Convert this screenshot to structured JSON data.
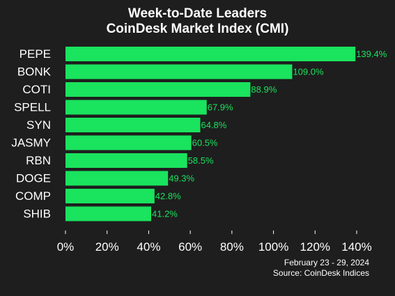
{
  "colors": {
    "background": "#1e1e1e",
    "bar": "#1ae35e",
    "text": "#ffffff",
    "value_label": "#1ae35e"
  },
  "chart_data": {
    "type": "bar",
    "orientation": "horizontal",
    "title": "Week-to-Date Leaders",
    "subtitle": "CoinDesk Market Index (CMI)",
    "categories": [
      "PEPE",
      "BONK",
      "COTI",
      "SPELL",
      "SYN",
      "JASMY",
      "RBN",
      "DOGE",
      "COMP",
      "SHIB"
    ],
    "values": [
      139.4,
      109.0,
      88.9,
      67.9,
      64.8,
      60.5,
      58.5,
      49.3,
      42.8,
      41.2
    ],
    "value_labels": [
      "139.4%",
      "109.0%",
      "88.9%",
      "67.9%",
      "64.8%",
      "60.5%",
      "58.5%",
      "49.3%",
      "42.8%",
      "41.2%"
    ],
    "xlim": [
      0,
      140
    ],
    "x_ticks": [
      0,
      20,
      40,
      60,
      80,
      100,
      120,
      140
    ],
    "x_tick_labels": [
      "0%",
      "20%",
      "40%",
      "60%",
      "80%",
      "100%",
      "120%",
      "140%"
    ],
    "grid": false,
    "legend": "none"
  },
  "footer": {
    "date_range": "February 23 - 29, 2024",
    "source": "Source: CoinDesk Indices"
  }
}
